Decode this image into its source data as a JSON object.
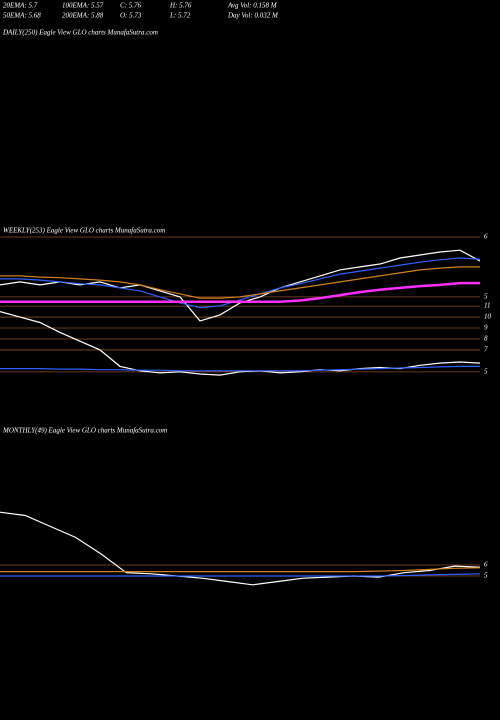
{
  "header": {
    "row1": [
      "20EMA: 5.7",
      "100EMA: 5.57",
      "C: 5.76",
      "H: 5.76",
      "Avg Vol: 0.158  M"
    ],
    "row2": [
      "50EMA: 5.68",
      "200EMA: 5.88",
      "O: 5.73",
      "L: 5.72",
      "Day Vol: 0.032  M"
    ],
    "daily_title": "DAILY(250) Eagle  View  GLO charts MunafaSutra.com"
  },
  "chart_data": [
    {
      "type": "line",
      "title": "WEEKLY(253) Eagle  View  GLO charts MunafaSutra.com",
      "ylim": [
        3.53,
        6.2
      ],
      "yticks": [
        6,
        5
      ],
      "y2lim": [
        3.8,
        18.4
      ],
      "y2ticks": [
        11,
        10,
        9,
        8,
        7,
        5
      ],
      "series": [
        {
          "color": "#ffffff",
          "values": [
            5.2,
            5.25,
            5.2,
            5.25,
            5.2,
            5.25,
            5.15,
            5.2,
            5.1,
            5.0,
            4.6,
            4.7,
            4.9,
            5.0,
            5.15,
            5.25,
            5.35,
            5.45,
            5.5,
            5.55,
            5.65,
            5.7,
            5.75,
            5.78,
            5.6
          ]
        },
        {
          "color": "#3060ff",
          "values": [
            5.3,
            5.3,
            5.28,
            5.25,
            5.22,
            5.2,
            5.15,
            5.1,
            5.0,
            4.9,
            4.82,
            4.85,
            4.95,
            5.05,
            5.15,
            5.22,
            5.3,
            5.38,
            5.43,
            5.48,
            5.53,
            5.58,
            5.62,
            5.65,
            5.63
          ]
        },
        {
          "color": "#d08020",
          "values": [
            5.35,
            5.35,
            5.33,
            5.32,
            5.3,
            5.28,
            5.25,
            5.2,
            5.12,
            5.05,
            4.98,
            4.98,
            5.0,
            5.05,
            5.1,
            5.15,
            5.2,
            5.25,
            5.3,
            5.35,
            5.4,
            5.45,
            5.48,
            5.5,
            5.5
          ]
        },
        {
          "color": "#ff30ff",
          "values": [
            4.92,
            4.92,
            4.92,
            4.92,
            4.92,
            4.92,
            4.92,
            4.92,
            4.92,
            4.92,
            4.92,
            4.92,
            4.92,
            4.92,
            4.92,
            4.94,
            4.98,
            5.03,
            5.08,
            5.12,
            5.15,
            5.18,
            5.2,
            5.23,
            5.23
          ]
        },
        {
          "color": "#ffffff",
          "axis": "y2",
          "values": [
            10.5,
            10.0,
            9.5,
            8.6,
            7.8,
            7.0,
            5.5,
            5.1,
            4.9,
            5.0,
            4.8,
            4.7,
            5.0,
            5.1,
            4.9,
            5.0,
            5.2,
            5.1,
            5.3,
            5.4,
            5.3,
            5.6,
            5.8,
            5.9,
            5.8
          ]
        },
        {
          "color": "#3060ff",
          "axis": "y2",
          "values": [
            5.3,
            5.3,
            5.3,
            5.25,
            5.25,
            5.2,
            5.2,
            5.15,
            5.15,
            5.1,
            5.1,
            5.1,
            5.1,
            5.1,
            5.1,
            5.1,
            5.15,
            5.2,
            5.25,
            5.3,
            5.35,
            5.4,
            5.45,
            5.5,
            5.5
          ]
        }
      ]
    },
    {
      "type": "line",
      "title": "MONTHLY(49) Eagle  View  GLO charts MunafaSutra.com",
      "ylim": [
        2.82,
        18.27
      ],
      "yticks": [
        6,
        5
      ],
      "series": [
        {
          "color": "#ffffff",
          "values": [
            10.8,
            10.5,
            9.5,
            8.5,
            7.0,
            5.3,
            5.2,
            5.0,
            4.8,
            4.5,
            4.2,
            4.5,
            4.8,
            4.9,
            5.0,
            4.9,
            5.3,
            5.5,
            5.9,
            5.8
          ]
        },
        {
          "color": "#d08020",
          "values": [
            5.4,
            5.4,
            5.4,
            5.4,
            5.4,
            5.4,
            5.4,
            5.4,
            5.4,
            5.4,
            5.4,
            5.4,
            5.4,
            5.4,
            5.4,
            5.45,
            5.5,
            5.6,
            5.7,
            5.75
          ]
        },
        {
          "color": "#3060ff",
          "values": [
            5.0,
            5.0,
            5.0,
            5.0,
            5.0,
            5.0,
            5.0,
            5.0,
            5.0,
            5.0,
            5.0,
            5.0,
            5.0,
            5.0,
            5.0,
            5.0,
            5.05,
            5.1,
            5.15,
            5.2
          ]
        }
      ]
    }
  ]
}
